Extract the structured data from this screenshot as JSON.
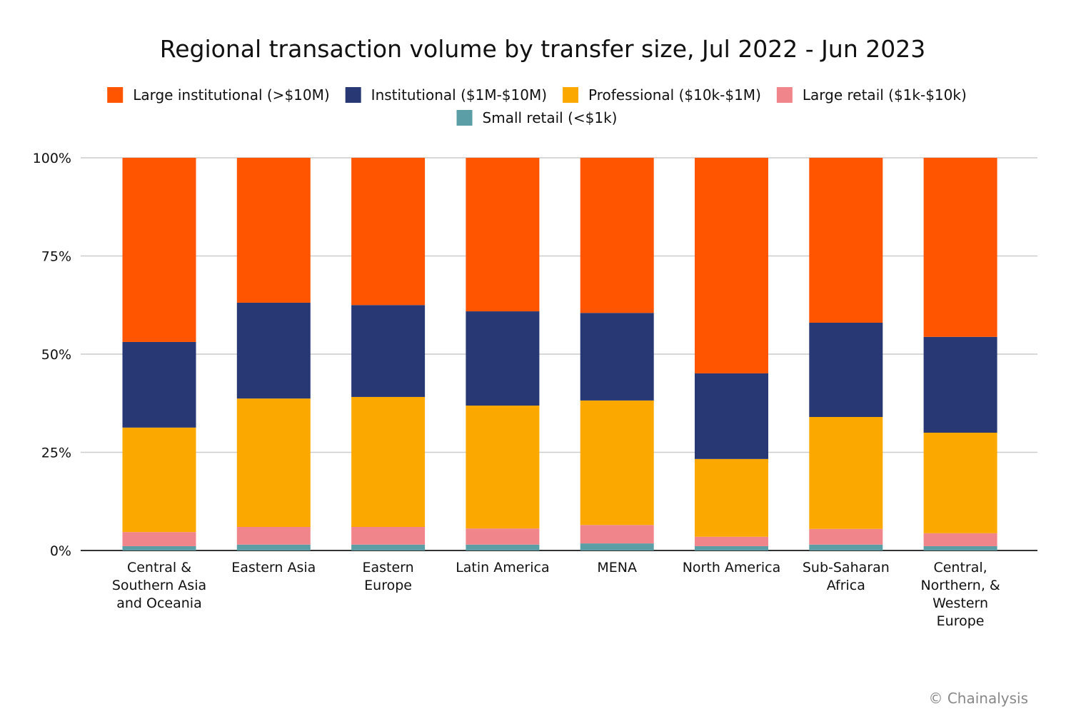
{
  "chart_data": {
    "type": "bar",
    "stacked": true,
    "title": "Regional transaction volume by transfer size, Jul 2022 - Jun 2023",
    "xlabel": "",
    "ylabel": "",
    "ylim": [
      0,
      100
    ],
    "yticks": [
      "0%",
      "25%",
      "50%",
      "75%",
      "100%"
    ],
    "grid": true,
    "legend_position": "top",
    "categories": [
      "Central & Southern Asia and Oceania",
      "Eastern Asia",
      "Eastern Europe",
      "Latin America",
      "MENA",
      "North America",
      "Sub-Saharan Africa",
      "Central, Northern, & Western Europe"
    ],
    "category_lines": [
      [
        "Central &",
        "Southern Asia",
        "and Oceania"
      ],
      [
        "Eastern Asia"
      ],
      [
        "Eastern",
        "Europe"
      ],
      [
        "Latin America"
      ],
      [
        "MENA"
      ],
      [
        "North America"
      ],
      [
        "Sub-Saharan",
        "Africa"
      ],
      [
        "Central,",
        "Northern, &",
        "Western",
        "Europe"
      ]
    ],
    "series": [
      {
        "name": "Small retail (<$1k)",
        "color": "#5B9EA6",
        "values": [
          1.1,
          1.5,
          1.5,
          1.5,
          1.8,
          1.1,
          1.5,
          1.1
        ]
      },
      {
        "name": "Large retail ($1k-$10k)",
        "color": "#F0868C",
        "values": [
          3.6,
          4.5,
          4.5,
          4.1,
          4.7,
          2.4,
          4.0,
          3.3
        ]
      },
      {
        "name": "Professional ($10k-$1M)",
        "color": "#FBA900",
        "values": [
          26.6,
          32.7,
          33.1,
          31.3,
          31.7,
          19.8,
          28.5,
          25.6
        ]
      },
      {
        "name": "Institutional ($1M-$10M)",
        "color": "#283874",
        "values": [
          21.8,
          24.4,
          23.4,
          24.0,
          22.3,
          21.8,
          24.0,
          24.4
        ]
      },
      {
        "name": "Large institutional (>$10M)",
        "color": "#FF5400",
        "values": [
          46.9,
          36.9,
          37.5,
          39.1,
          39.5,
          54.9,
          42.0,
          45.6
        ]
      }
    ],
    "legend_order": [
      4,
      3,
      2,
      1,
      0
    ]
  },
  "credit": "© Chainalysis"
}
